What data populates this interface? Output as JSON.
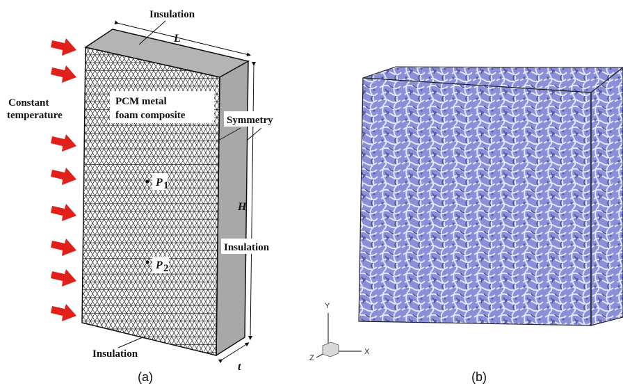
{
  "panel_a": {
    "caption": "(a)",
    "top_label": "Insulation",
    "bottom_label": "Insulation",
    "right_label": "Insulation",
    "symmetry_label": "Symmetry",
    "left_label_line1": "Constant",
    "left_label_line2": "temperature",
    "material_line1": "PCM metal",
    "material_line2": "foam composite",
    "dim_length": "L",
    "dim_height": "H",
    "dim_thickness": "t",
    "probe1": "P",
    "probe1_sub": "1",
    "probe2": "P",
    "probe2_sub": "2",
    "arrow_color": "#e0201b",
    "side_face_color": "#a8a8a8",
    "top_face_color": "#b4b4b4"
  },
  "panel_b": {
    "caption": "(b)",
    "axis_y": "Y",
    "axis_x": "X",
    "axis_z": "Z",
    "foam_color": "#8a8fd8"
  }
}
